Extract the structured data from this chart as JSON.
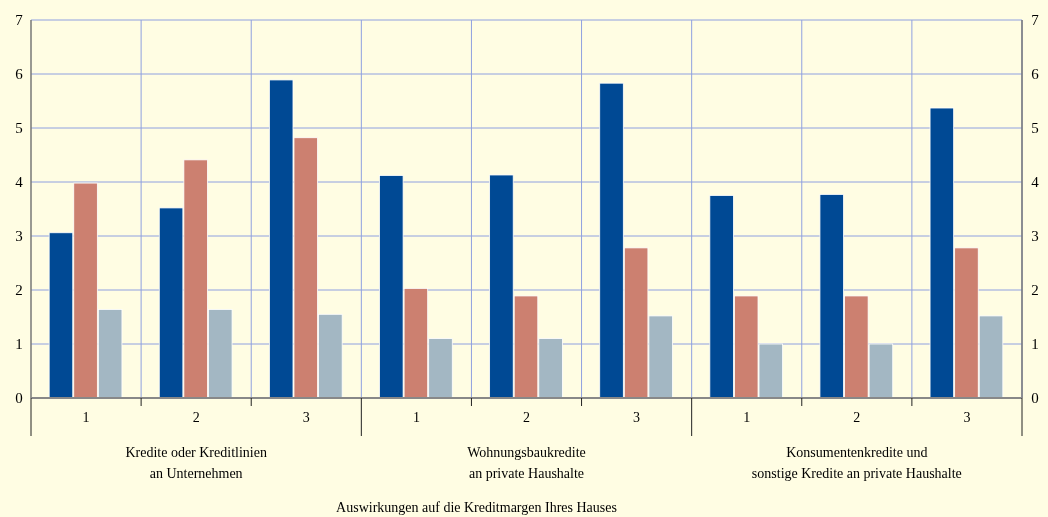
{
  "chart_data": {
    "type": "bar",
    "categories": [
      "1",
      "2",
      "3",
      "1",
      "2",
      "3",
      "1",
      "2",
      "3"
    ],
    "series": [
      {
        "color": "#004994",
        "values": [
          3.06,
          3.52,
          5.89,
          4.12,
          4.13,
          5.83,
          3.75,
          3.77,
          5.37
        ]
      },
      {
        "color": "#cc8070",
        "values": [
          3.98,
          4.41,
          4.82,
          2.03,
          1.89,
          2.78,
          1.89,
          1.89,
          2.78
        ]
      },
      {
        "color": "#a3b7c3",
        "values": [
          1.64,
          1.64,
          1.55,
          1.1,
          1.1,
          1.52,
          1.0,
          1.0,
          1.52
        ]
      }
    ],
    "annotations": [
      "Kredite oder Kreditlinien\nan Unternehmen",
      "Wohnungsbaukredite\nan private Haushalte",
      "Konsumentenkredite und\nsonstige Kredite an private Haushalte",
      "Auswirkungen auf die Kreditmargen Ihres Hauses"
    ],
    "ylim": [
      0,
      7
    ],
    "yticks": [
      0,
      1,
      2,
      3,
      4,
      5,
      6,
      7
    ],
    "y2lim": [
      0,
      7
    ],
    "y2ticks": [
      0,
      1,
      2,
      3,
      4,
      5,
      6,
      7
    ],
    "grid": true
  }
}
